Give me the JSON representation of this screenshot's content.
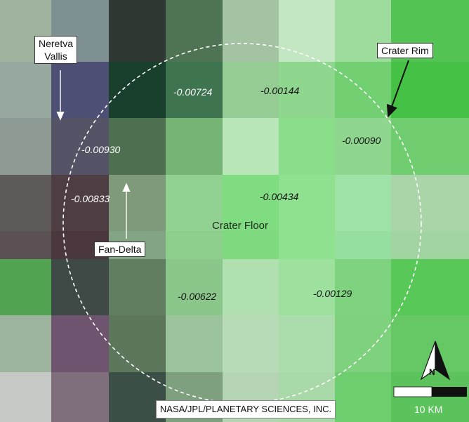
{
  "grid": {
    "rows": 8,
    "cols": 8,
    "colors": [
      [
        "#9fb39f",
        "#7f9093",
        "#303834",
        "#4f7455",
        "#a3c3a3",
        "#c3e6c3",
        "#9edc9e",
        "#53c453"
      ],
      [
        "#98aaa0",
        "#4d4f74",
        "#173f2c",
        "#3f7450",
        "#94cc94",
        "#8fd68f",
        "#72d072",
        "#45c245"
      ],
      [
        "#8e9a94",
        "#545466",
        "#4f7050",
        "#76b476",
        "#b8e6b8",
        "#8ade8a",
        "#8fd68f",
        "#6fcd6f"
      ],
      [
        "#5e5a59",
        "#4e3e44",
        "#7f9a7a",
        "#91d191",
        "#80dc80",
        "#8fe08f",
        "#9ee2a8",
        "#a9d5a9"
      ],
      [
        "#5b5155",
        "#4a383e",
        "#84a486",
        "#8ecf8e",
        "#7fda7f",
        "#8fe08f",
        "#96dfa0",
        "#a1d4a1"
      ],
      [
        "#52a352",
        "#3f4a46",
        "#627e62",
        "#8bc78b",
        "#b0e0b0",
        "#9ee09e",
        "#7fd37f",
        "#58c858"
      ],
      [
        "#9db39d",
        "#6f5470",
        "#5d775d",
        "#9cc49c",
        "#b7dbb7",
        "#abdcab",
        "#7ed27e",
        "#65c865"
      ],
      [
        "#c5c8c5",
        "#7f6f7d",
        "#3c4f46",
        "#7ea07e",
        "#b4d4b4",
        "#a9d9a9",
        "#6ecd6e",
        "#5cc35c"
      ]
    ]
  },
  "values": [
    {
      "text": "-0.00724",
      "tone": "light"
    },
    {
      "text": "-0.00144",
      "tone": "dark"
    },
    {
      "text": "-0.00930",
      "tone": "light"
    },
    {
      "text": "-0.00090",
      "tone": "dark"
    },
    {
      "text": "-0.00833",
      "tone": "light"
    },
    {
      "text": "-0.00434",
      "tone": "dark"
    },
    {
      "text": "-0.00622",
      "tone": "dark"
    },
    {
      "text": "-0.00129",
      "tone": "dark"
    }
  ],
  "labels": {
    "neretva_line1": "Neretva",
    "neretva_line2": "Vallis",
    "crater_rim": "Crater Rim",
    "fan_delta": "Fan-Delta",
    "crater_floor": "Crater Floor"
  },
  "credit": "NASA/JPL/PLANETARY SCIENCES, INC.",
  "scale_bar": {
    "label": "10 KM"
  },
  "north_arrow": {
    "letter": "N",
    "icon": "north-arrow-icon"
  },
  "colors": {
    "crater_outline": "#ffffff",
    "annotation_arrow_light": "#ffffff",
    "annotation_arrow_dark": "#111111",
    "scale_dark": "#111111",
    "scale_light": "#ffffff"
  }
}
